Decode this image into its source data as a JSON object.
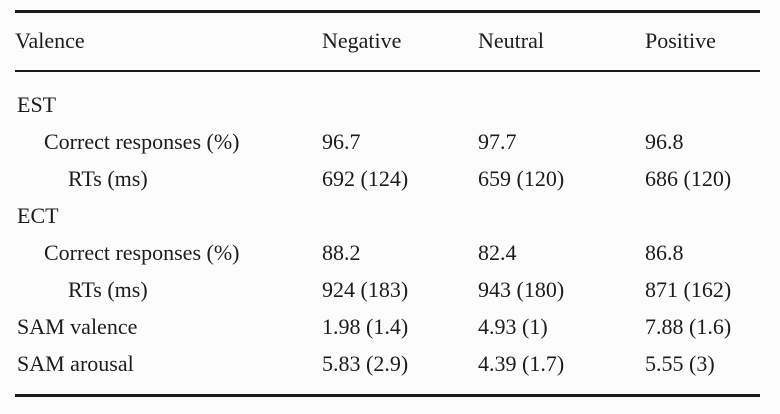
{
  "table": {
    "columns": [
      "Valence",
      "Negative",
      "Neutral",
      "Positive"
    ],
    "rows": [
      {
        "label": "EST",
        "indent": 0,
        "values": [
          "",
          "",
          ""
        ]
      },
      {
        "label": "Correct responses (%)",
        "indent": 1,
        "values": [
          "96.7",
          "97.7",
          "96.8"
        ]
      },
      {
        "label": "RTs (ms)",
        "indent": 2,
        "values": [
          "692 (124)",
          "659 (120)",
          "686 (120)"
        ]
      },
      {
        "label": "ECT",
        "indent": 0,
        "values": [
          "",
          "",
          ""
        ]
      },
      {
        "label": "Correct responses (%)",
        "indent": 1,
        "values": [
          "88.2",
          "82.4",
          "86.8"
        ]
      },
      {
        "label": "RTs (ms)",
        "indent": 2,
        "values": [
          "924 (183)",
          "943 (180)",
          "871 (162)"
        ]
      },
      {
        "label": "SAM valence",
        "indent": 0,
        "values": [
          "1.98 (1.4)",
          "4.93 (1)",
          "7.88 (1.6)"
        ]
      },
      {
        "label": "SAM arousal",
        "indent": 0,
        "values": [
          "5.83 (2.9)",
          "4.39 (1.7)",
          "5.55 (3)"
        ]
      }
    ],
    "colors": {
      "background": "#fcfcfc",
      "text": "#1c1c1c",
      "rule": "#1a1a1a"
    }
  }
}
